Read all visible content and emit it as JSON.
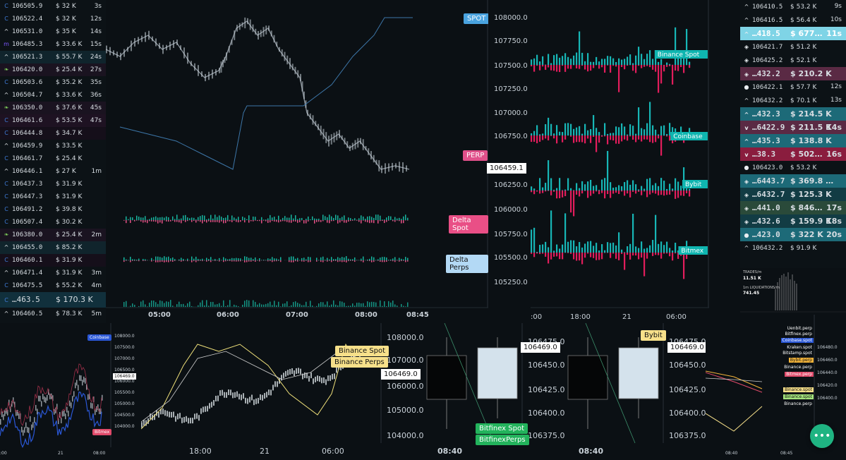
{
  "left_trades": [
    {
      "icon": "coinbase-icon",
      "price": "106505.9",
      "size": "$ 32 K",
      "time": "3s",
      "bg": "#0c1216"
    },
    {
      "icon": "coinbase-icon",
      "price": "106522.4",
      "size": "$ 32 K",
      "time": "12s",
      "bg": "#0c1216"
    },
    {
      "icon": "chevron-up-icon",
      "price": "106531.0",
      "size": "$ 35 K",
      "time": "14s",
      "bg": "#0c1216"
    },
    {
      "icon": "bitmex-icon",
      "price": "106485.3",
      "size": "$ 33.6 K",
      "time": "15s",
      "bg": "#0c1216"
    },
    {
      "icon": "chevron-up-icon",
      "price": "106521.3",
      "size": "$ 55.7 K",
      "time": "24s",
      "bg": "#10242c"
    },
    {
      "icon": "leaf-icon",
      "price": "106420.0",
      "size": "$ 25.4 K",
      "time": "27s",
      "bg": "#1a1320"
    },
    {
      "icon": "coinbase-icon",
      "price": "106503.6",
      "size": "$ 35.2 K",
      "time": "35s",
      "bg": "#0c1216"
    },
    {
      "icon": "chevron-up-icon",
      "price": "106504.7",
      "size": "$ 33.6 K",
      "time": "36s",
      "bg": "#0c1216"
    },
    {
      "icon": "leaf-icon",
      "price": "106350.0",
      "size": "$ 37.6 K",
      "time": "45s",
      "bg": "#1a1320"
    },
    {
      "icon": "coinbase-icon",
      "price": "106461.6",
      "size": "$ 53.5 K",
      "time": "47s",
      "bg": "#1e1222"
    },
    {
      "icon": "coinbase-icon",
      "price": "106444.8",
      "size": "$ 34.7 K",
      "time": "",
      "bg": "#150f1a"
    },
    {
      "icon": "chevron-up-icon",
      "price": "106459.9",
      "size": "$ 33.5 K",
      "time": "",
      "bg": "#0c1216"
    },
    {
      "icon": "coinbase-icon",
      "price": "106461.7",
      "size": "$ 25.4 K",
      "time": "",
      "bg": "#0c1216"
    },
    {
      "icon": "chevron-up-icon",
      "price": "106446.1",
      "size": "$ 27 K",
      "time": "1m",
      "bg": "#0c1216"
    },
    {
      "icon": "coinbase-icon",
      "price": "106437.3",
      "size": "$ 31.9 K",
      "time": "",
      "bg": "#0c1216"
    },
    {
      "icon": "coinbase-icon",
      "price": "106447.3",
      "size": "$ 31.9 K",
      "time": "",
      "bg": "#0c1216"
    },
    {
      "icon": "coinbase-icon",
      "price": "106491.2",
      "size": "$ 39.8 K",
      "time": "",
      "bg": "#0c1216"
    },
    {
      "icon": "coinbase-icon",
      "price": "106507.4",
      "size": "$ 30.2 K",
      "time": "",
      "bg": "#0c1216"
    },
    {
      "icon": "leaf-icon",
      "price": "106380.0",
      "size": "$ 25.4 K",
      "time": "2m",
      "bg": "#1a1320"
    },
    {
      "icon": "chevron-up-icon",
      "price": "106455.0",
      "size": "$ 85.2 K",
      "time": "",
      "bg": "#10242c"
    },
    {
      "icon": "coinbase-icon",
      "price": "106460.1",
      "size": "$ 31.9 K",
      "time": "",
      "bg": "#150f1a"
    },
    {
      "icon": "chevron-up-icon",
      "price": "106471.4",
      "size": "$ 31.9 K",
      "time": "3m",
      "bg": "#0c1216"
    },
    {
      "icon": "coinbase-icon",
      "price": "106475.5",
      "size": "$ 55.2 K",
      "time": "4m",
      "bg": "#0c1216"
    },
    {
      "icon": "coinbase-icon",
      "price": "…463.5",
      "size": "$ 170.3 K",
      "time": "",
      "bg": "#11303c",
      "big": true
    },
    {
      "icon": "chevron-up-icon",
      "price": "106460.5",
      "size": "$ 78.3 K",
      "time": "5m",
      "bg": "#0c1216"
    }
  ],
  "right_trades": [
    {
      "icon": "chevron-up-icon",
      "price": "106410.5",
      "size": "$ 53.2 K",
      "time": "9s",
      "bg": "#0c1216"
    },
    {
      "icon": "chevron-up-icon",
      "price": "106416.5",
      "size": "$ 56.4 K",
      "time": "10s",
      "bg": "#0c1216"
    },
    {
      "icon": "chevron-up-icon",
      "price": "…418.5",
      "size": "$ 677…",
      "time": "11s",
      "bg": "#7fd4e6",
      "big": true
    },
    {
      "icon": "binance-icon",
      "price": "106421.7",
      "size": "$ 51.2 K",
      "time": "",
      "bg": "#0c1216"
    },
    {
      "icon": "binance-icon",
      "price": "106425.2",
      "size": "$ 52.1 K",
      "time": "",
      "bg": "#0c1216"
    },
    {
      "icon": "binance-icon",
      "price": "…432.2",
      "size": "$ 210.2 K",
      "time": "",
      "bg": "#5a2a44",
      "big": true
    },
    {
      "icon": "coin-icon",
      "price": "106422.1",
      "size": "$ 57.7 K",
      "time": "12s",
      "bg": "#0c1216"
    },
    {
      "icon": "chevron-up-icon",
      "price": "106432.2",
      "size": "$ 70.1 K",
      "time": "13s",
      "bg": "#0c1216"
    },
    {
      "icon": "chevron-up-icon",
      "price": "…432.3",
      "size": "$ 214.5 K",
      "time": "",
      "bg": "#1d6a78",
      "big": true
    },
    {
      "icon": "chevron-down-icon",
      "price": "…6422.9",
      "size": "$ 211.5 K",
      "time": "14s",
      "bg": "#5a2a44",
      "big": true
    },
    {
      "icon": "chevron-up-icon",
      "price": "…435.3",
      "size": "$ 138.8 K",
      "time": "",
      "bg": "#1d6a78",
      "big": true
    },
    {
      "icon": "chevron-down-icon",
      "price": "…38.3",
      "size": "$ 502…",
      "time": "16s",
      "bg": "#8a1d3e",
      "big": true
    },
    {
      "icon": "coin-icon",
      "price": "106423.0",
      "size": "$ 53.2 K",
      "time": "",
      "bg": "#0c1216"
    },
    {
      "icon": "binance-icon",
      "price": "…6443.7",
      "size": "$ 369.8 …",
      "time": "",
      "bg": "#1d6a78",
      "big": true
    },
    {
      "icon": "binance-icon",
      "price": "…6432.7",
      "size": "$ 125.3 K",
      "time": "",
      "bg": "#123c44",
      "big": true
    },
    {
      "icon": "binance-icon",
      "price": "…441.0",
      "size": "$ 846…",
      "time": "17s",
      "bg": "#2a4a3a",
      "big": true
    },
    {
      "icon": "binance-icon",
      "price": "…432.6",
      "size": "$ 159.9 K",
      "time": "18s",
      "bg": "#123c44",
      "big": true
    },
    {
      "icon": "coin-icon",
      "price": "…423.0",
      "size": "$ 322 K",
      "time": "20s",
      "bg": "#1d6a78",
      "big": true
    },
    {
      "icon": "chevron-up-icon",
      "price": "106432.2",
      "size": "$ 91.9 K",
      "time": "",
      "bg": "#0c1216"
    }
  ],
  "main_chart": {
    "labels": {
      "spot": "SPOT",
      "perp": "PERP",
      "delta_spot": "Delta Spot",
      "delta_perps": "Delta Perps"
    },
    "price_axis": [
      "108000.0",
      "107750.0",
      "107500.0",
      "107250.0",
      "107000.0",
      "106750.0",
      "106250.0",
      "106000.0",
      "105750.0",
      "105500.0",
      "105250.0"
    ],
    "current_price": "106459.1",
    "time_axis": [
      "05:00",
      "06:00",
      "07:00",
      "08:00",
      "08:45"
    ],
    "colors": {
      "spot": "#4aa3df",
      "perp": "#e0508a",
      "delta_spot": "#e94f86",
      "delta_perps": "#b3d9f5"
    }
  },
  "exchange_deltas": {
    "labels": [
      "Binance Spot",
      "Coinbase",
      "Bybit",
      "Bitmex"
    ],
    "time_axis": [
      ":00",
      "18:00",
      "21",
      "06:00"
    ],
    "color": "#17b6b6"
  },
  "trades_widget": {
    "trades_label": "TRADES/m",
    "trades_value": "11.51 K",
    "liq_label": "1m LIQUIDATIONS/m",
    "liq_value": "741.45"
  },
  "mini_chart_left": {
    "labels": {
      "coinbase": "Coinbase",
      "bitmex": "Bitmex"
    },
    "price_axis": [
      "108000.0",
      "107500.0",
      "107000.0",
      "106500.0",
      "106000.0",
      "105500.0",
      "105000.0",
      "104500.0",
      "104000.0"
    ],
    "current_price": "106469.0",
    "time_axis": [
      ":00",
      "21",
      "08:00"
    ]
  },
  "mini_chart_mid": {
    "labels": {
      "binance_spot": "Binance Spot",
      "binance_perps": "Binance Perps"
    },
    "price_axis": [
      "108000.0",
      "107000.0",
      "106000.0",
      "105000.0",
      "104000.0"
    ],
    "current_price": "106469.0",
    "time_axis": [
      "18:00",
      "21",
      "06:00"
    ]
  },
  "candles_chart_a": {
    "labels": {
      "bitfinex_spot": "Bitfinex Spot",
      "bitfinex_perps": "BitfinexPerps"
    },
    "price_axis": [
      "106475.0",
      "106450.0",
      "106425.0",
      "106400.0",
      "106375.0"
    ],
    "current_price": "106469.0",
    "time_axis": [
      "08:40"
    ]
  },
  "candles_chart_b": {
    "labels": {
      "bybit": "Bybit"
    },
    "price_axis": [
      "106475.0",
      "106450.0",
      "106425.0",
      "106400.0",
      "106375.0"
    ],
    "current_price": "106469.0",
    "time_axis": [
      "08:40"
    ]
  },
  "legend_chart": {
    "entries": [
      {
        "label": "Uenbit.perp",
        "color": "#0b1014",
        "fg": "#ffffff"
      },
      {
        "label": "Bitfinex.perp",
        "color": "#0b1014",
        "fg": "#ffffff"
      },
      {
        "label": "Coinbase.spot",
        "color": "#2a57d6",
        "fg": "#ffffff"
      },
      {
        "label": "Kraken.spot",
        "color": "#0b1014",
        "fg": "#ffffff"
      },
      {
        "label": "Bitstamp.spot",
        "color": "#0b1014",
        "fg": "#ffffff"
      },
      {
        "label": "Bybit.perp",
        "color": "#f3b43a",
        "fg": "#111111"
      },
      {
        "label": "Binance.perp",
        "color": "#0b1014",
        "fg": "#ffffff"
      },
      {
        "label": "Bitmex.perp",
        "color": "#e04a6a",
        "fg": "#ffffff"
      },
      {
        "label": "Binance.spot",
        "color": "#f7e08a",
        "fg": "#111111"
      },
      {
        "label": "Binance.spot",
        "color": "#a4e37c",
        "fg": "#111111"
      },
      {
        "label": "Binance.perp",
        "color": "#0b1014",
        "fg": "#ffffff"
      }
    ],
    "price_axis": [
      "106480.0",
      "106460.0",
      "106440.0",
      "106420.0",
      "106400.0"
    ],
    "time_axis": [
      "08:40",
      "08:45"
    ]
  },
  "fab": {
    "label": "•••"
  }
}
